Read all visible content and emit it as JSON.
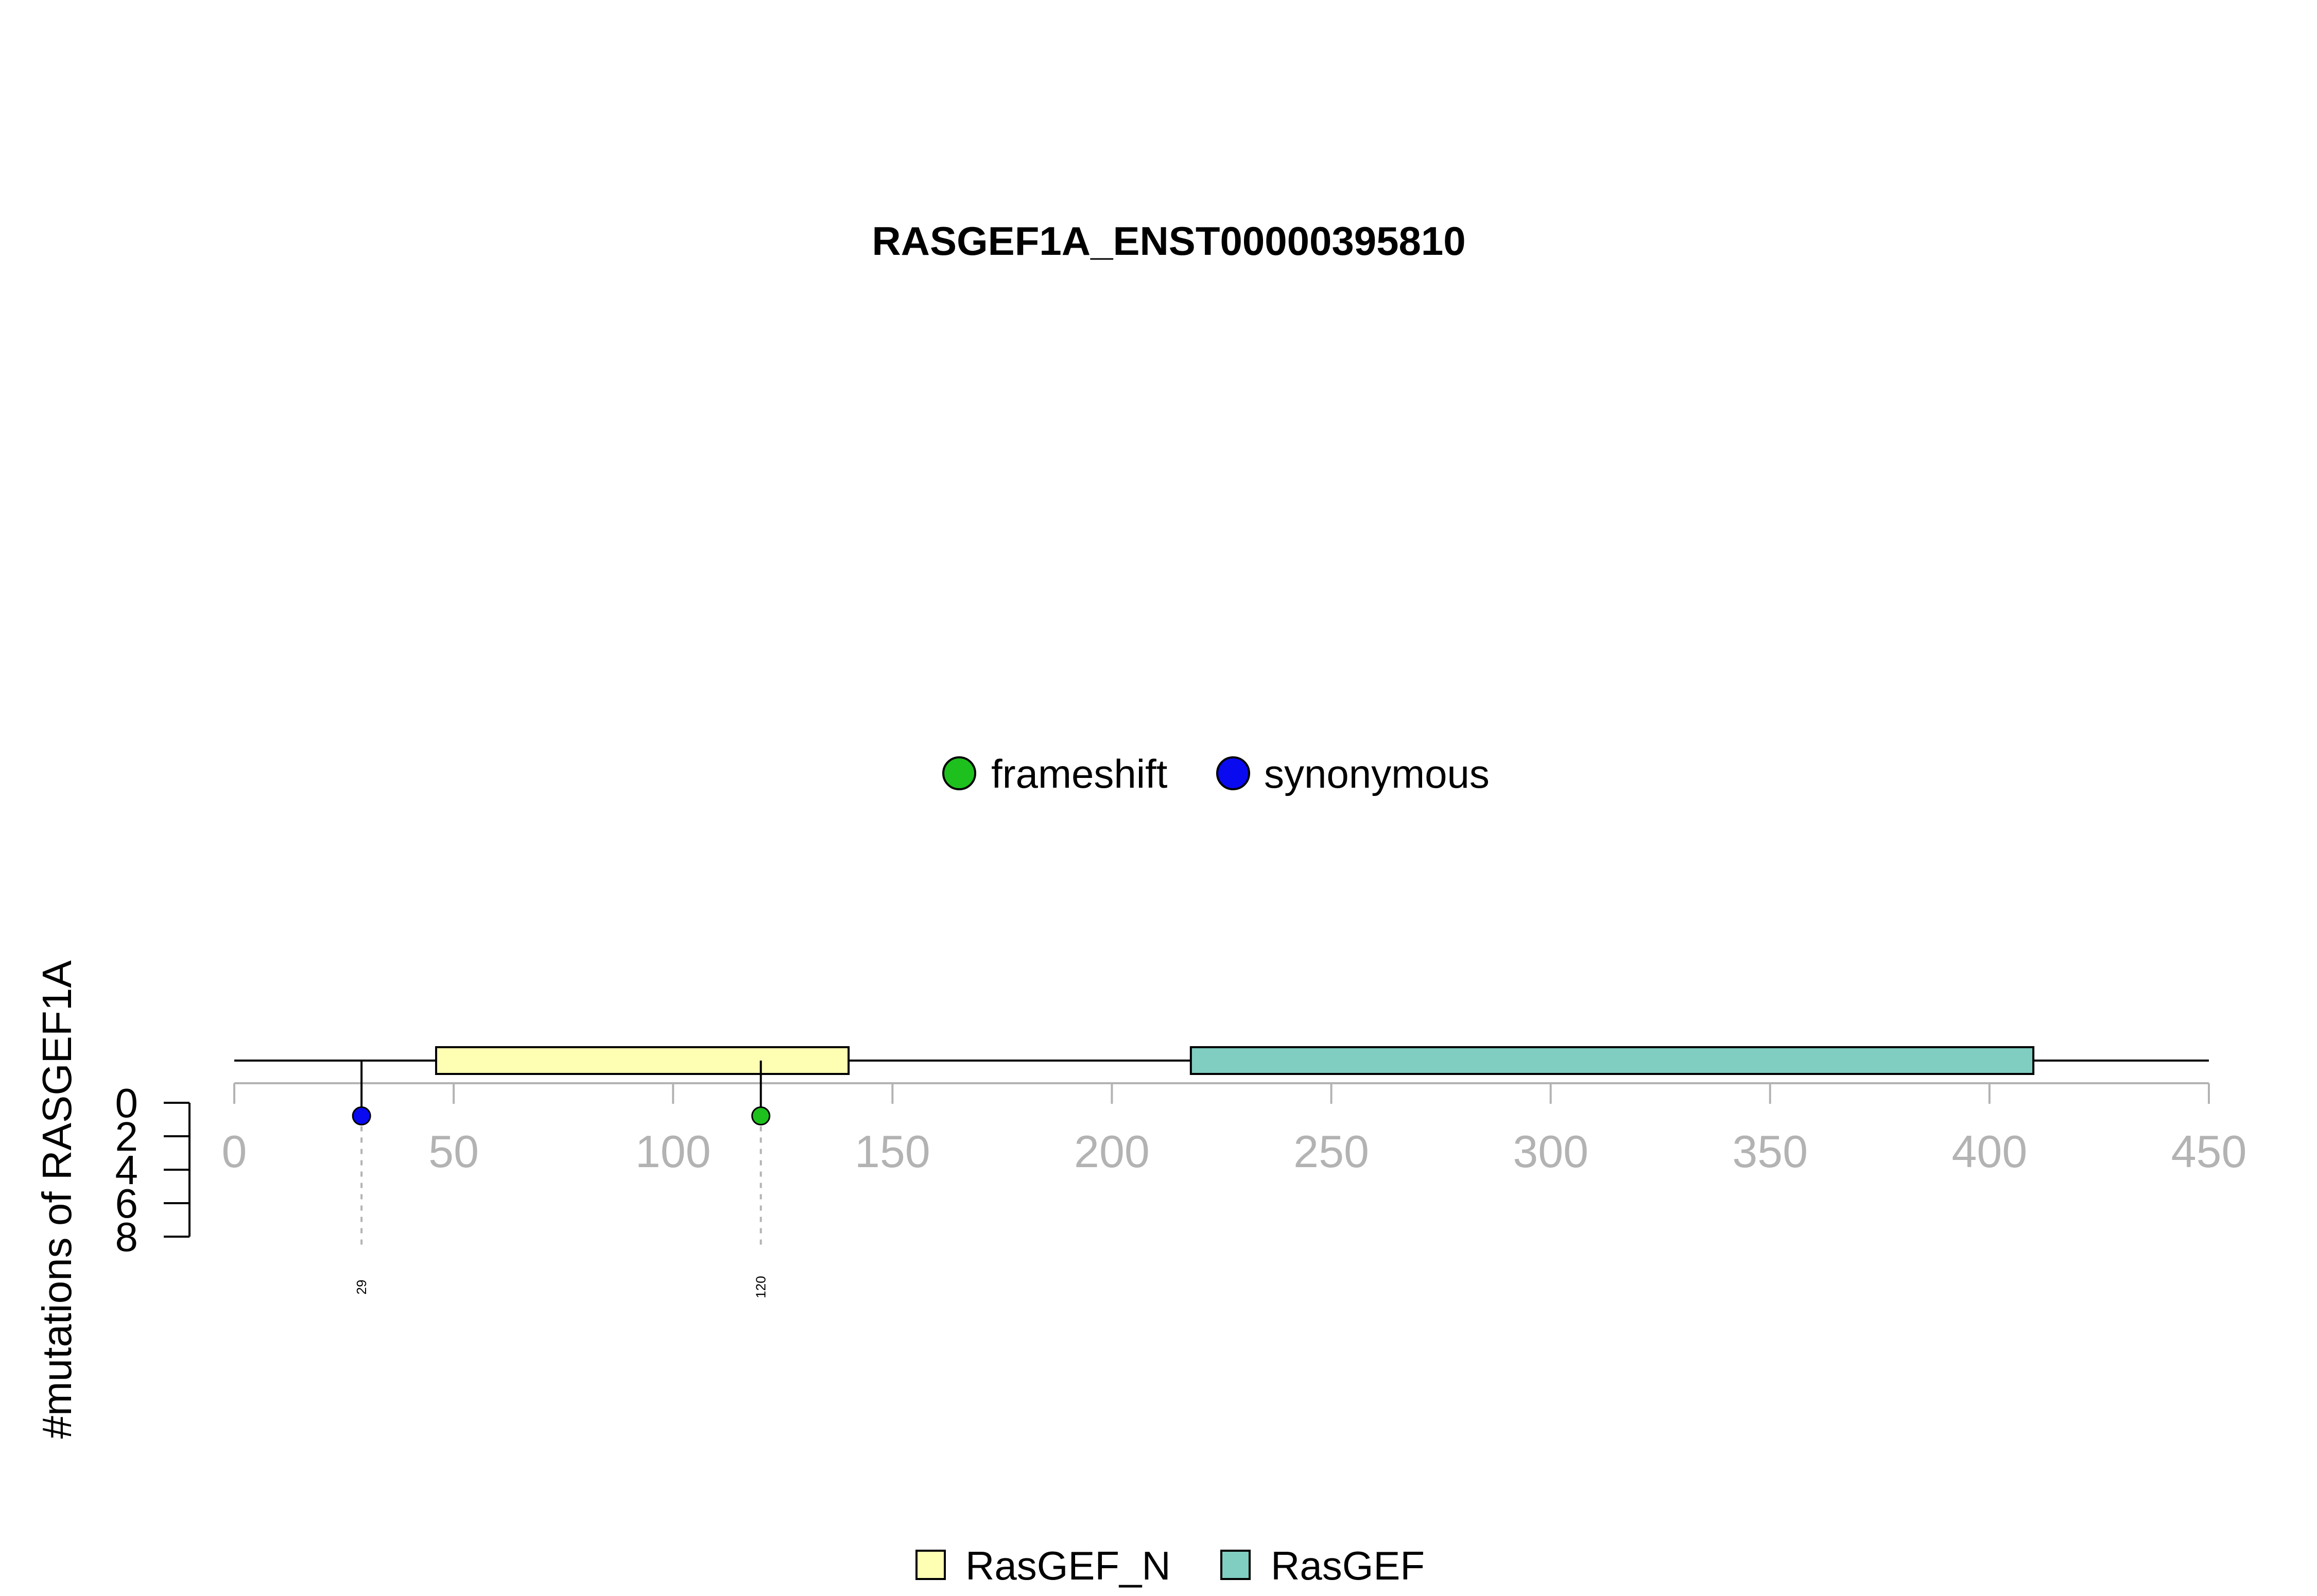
{
  "chart_data": {
    "type": "lollipop",
    "title": "RASGEF1A_ENST00000395810",
    "ylabel": "#mutations of RASGEF1A",
    "protein_length": 450,
    "x_ticks": [
      0,
      50,
      100,
      150,
      200,
      250,
      300,
      350,
      400,
      450
    ],
    "xlim": [
      0,
      450
    ],
    "y_ticks": [
      0,
      2,
      4,
      6,
      8
    ],
    "ylim": [
      0,
      8
    ],
    "mutation_legend": [
      {
        "name": "frameshift",
        "color": "#1ec01e"
      },
      {
        "name": "synonymous",
        "color": "#0a0af0"
      }
    ],
    "domain_legend": [
      {
        "name": "RasGEF_N",
        "color": "#ffffb3"
      },
      {
        "name": "RasGEF",
        "color": "#80cdc1"
      }
    ],
    "domains": [
      {
        "name": "RasGEF_N",
        "start": 46,
        "end": 140,
        "color": "#ffffb3"
      },
      {
        "name": "RasGEF",
        "start": 218,
        "end": 410,
        "color": "#80cdc1"
      }
    ],
    "mutations": [
      {
        "position": 29,
        "label": "29",
        "count": 1,
        "type": "synonymous",
        "color": "#0a0af0"
      },
      {
        "position": 120,
        "label": "120",
        "count": 1,
        "type": "frameshift",
        "color": "#1ec01e"
      }
    ]
  }
}
